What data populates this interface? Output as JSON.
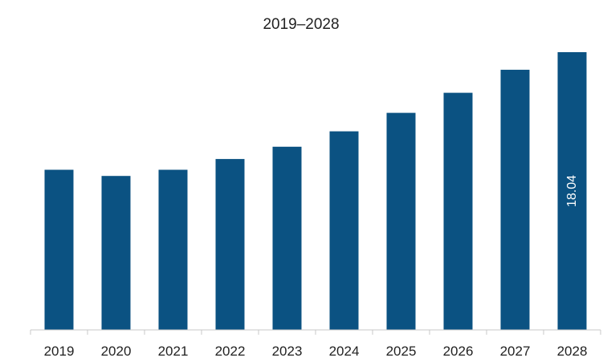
{
  "chart_data": {
    "type": "bar",
    "title": "2019–2028",
    "xlabel": "",
    "ylabel": "",
    "categories": [
      "2019",
      "2020",
      "2021",
      "2022",
      "2023",
      "2024",
      "2025",
      "2026",
      "2027",
      "2028"
    ],
    "values": [
      10.4,
      10.0,
      10.4,
      11.1,
      11.9,
      12.9,
      14.1,
      15.4,
      16.9,
      18.04
    ],
    "data_labels": [
      "",
      "",
      "",
      "",
      "",
      "",
      "",
      "",
      "",
      "18.04"
    ],
    "ylim": [
      0,
      18.04
    ],
    "grid": false,
    "legend": "none",
    "bar_color": "#0b5282",
    "label_color": "#ffffff"
  }
}
